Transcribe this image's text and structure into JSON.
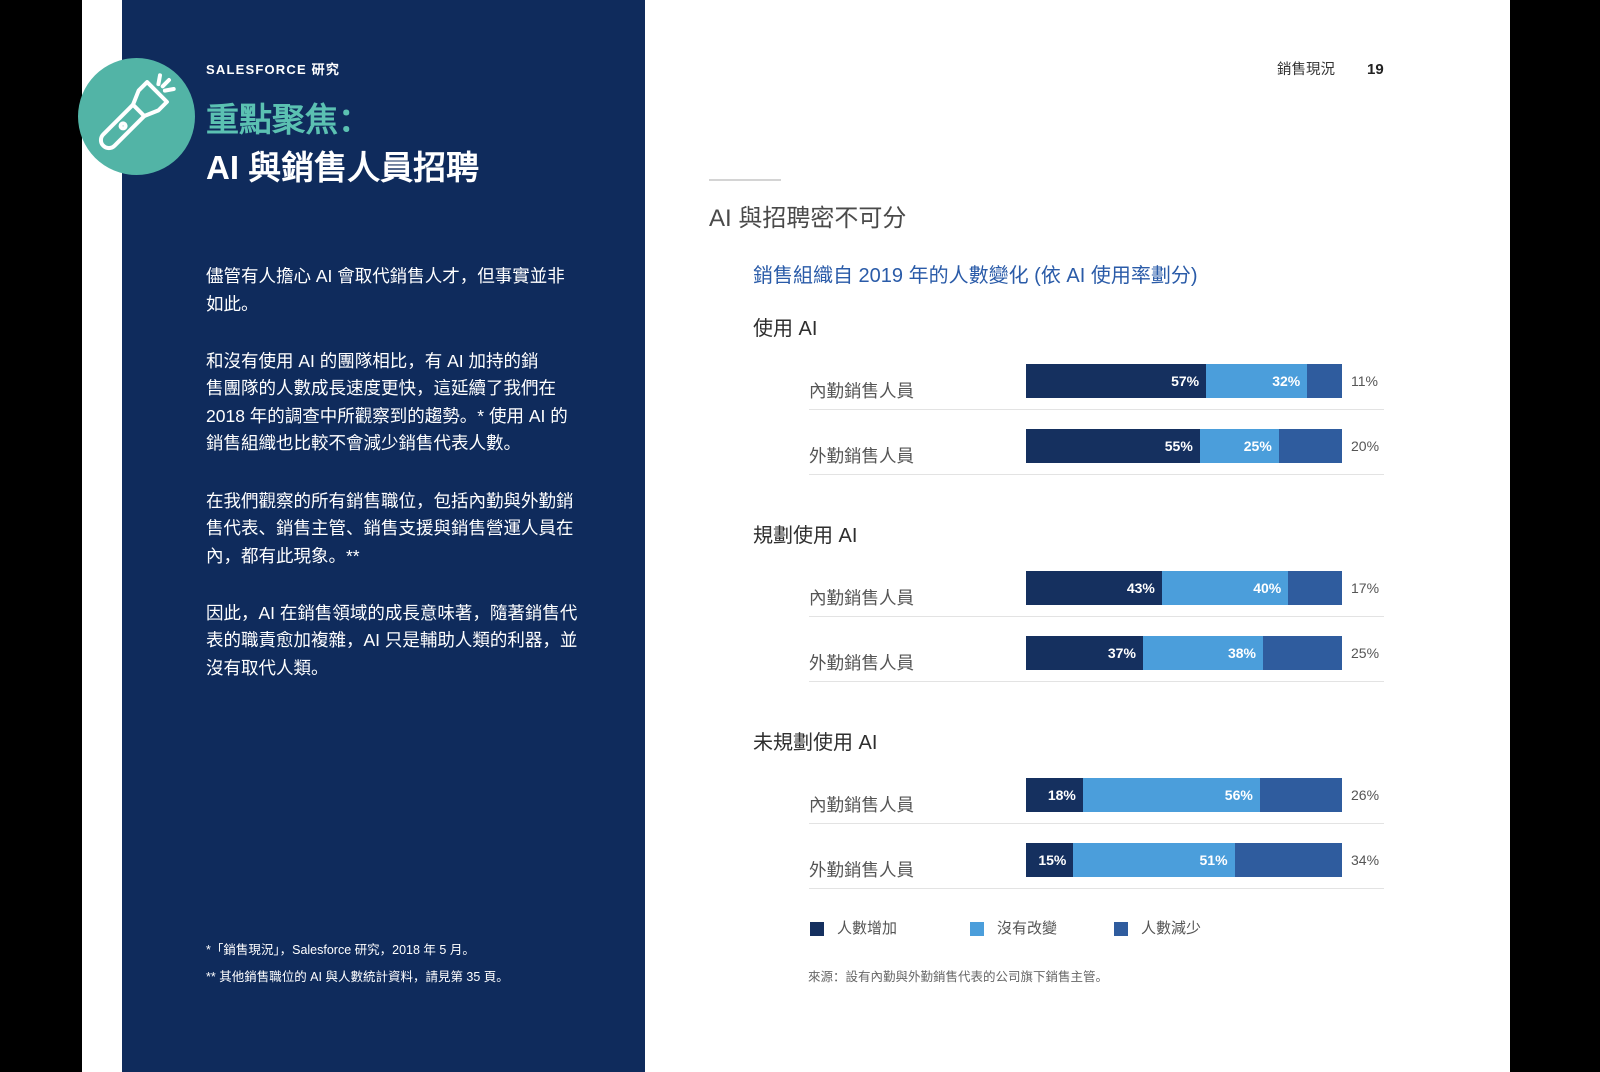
{
  "colors": {
    "panel": "#0f2b5c",
    "accent_teal": "#5bc1b2",
    "badge_teal": "#52b4a6",
    "chart_title_blue": "#2a5ba8"
  },
  "running_head": {
    "section": "銷售現況",
    "page_number": "19"
  },
  "sidebar": {
    "icon": "flashlight-icon",
    "eyebrow": "SALESFORCE 研究",
    "title_line1": "重點聚焦：",
    "title_line2": "AI 與銷售人員招聘",
    "paragraphs": [
      {
        "lines": [
          "儘管有人擔心 AI 會取代銷售人才，但事實並非",
          "如此。"
        ]
      },
      {
        "lines": [
          "和沒有使用 AI 的團隊相比，有 AI 加持的銷",
          "售團隊的人數成長速度更快，這延續了我們在",
          "2018 年的調查中所觀察到的趨勢。* 使用 AI 的",
          "銷售組織也比較不會減少銷售代表人數。"
        ]
      },
      {
        "lines": [
          "在我們觀察的所有銷售職位，包括內勤與外勤銷",
          "售代表、銷售主管、銷售支援與銷售營運人員在",
          "內，都有此現象。**"
        ]
      },
      {
        "lines": [
          "因此，AI 在銷售領域的成長意味著，隨著銷售代",
          "表的職責愈加複雜，AI 只是輔助人類的利器，並",
          "沒有取代人類。"
        ]
      }
    ],
    "footnotes": [
      "*「銷售現況」，Salesforce 研究，2018 年 5 月。",
      "** 其他銷售職位的 AI 與人數統計資料，請見第 35 頁。"
    ]
  },
  "main": {
    "heading": "AI 與招聘密不可分",
    "source": "來源：設有內勤與外勤銷售代表的公司旗下銷售主管。"
  },
  "chart_data": {
    "type": "bar",
    "orientation": "horizontal",
    "stacked": true,
    "title": "銷售組織自 2019 年的人數變化 (依 AI 使用率劃分)",
    "value_suffix": "%",
    "xlim": [
      0,
      100
    ],
    "legend": "bottom",
    "series": [
      {
        "name": "人數增加",
        "color": "#15305f"
      },
      {
        "name": "沒有改變",
        "color": "#4b9edb"
      },
      {
        "name": "人數減少",
        "color": "#2f5c9e"
      }
    ],
    "groups": [
      {
        "title": "使用 AI",
        "rows": [
          {
            "label": "內勤銷售人員",
            "values": [
              57,
              32,
              11
            ]
          },
          {
            "label": "外勤銷售人員",
            "values": [
              55,
              25,
              20
            ]
          }
        ]
      },
      {
        "title": "規劃使用 AI",
        "rows": [
          {
            "label": "內勤銷售人員",
            "values": [
              43,
              40,
              17
            ]
          },
          {
            "label": "外勤銷售人員",
            "values": [
              37,
              38,
              25
            ]
          }
        ]
      },
      {
        "title": "未規劃使用 AI",
        "rows": [
          {
            "label": "內勤銷售人員",
            "values": [
              18,
              56,
              26
            ]
          },
          {
            "label": "外勤銷售人員",
            "values": [
              15,
              51,
              34
            ]
          }
        ]
      }
    ]
  }
}
